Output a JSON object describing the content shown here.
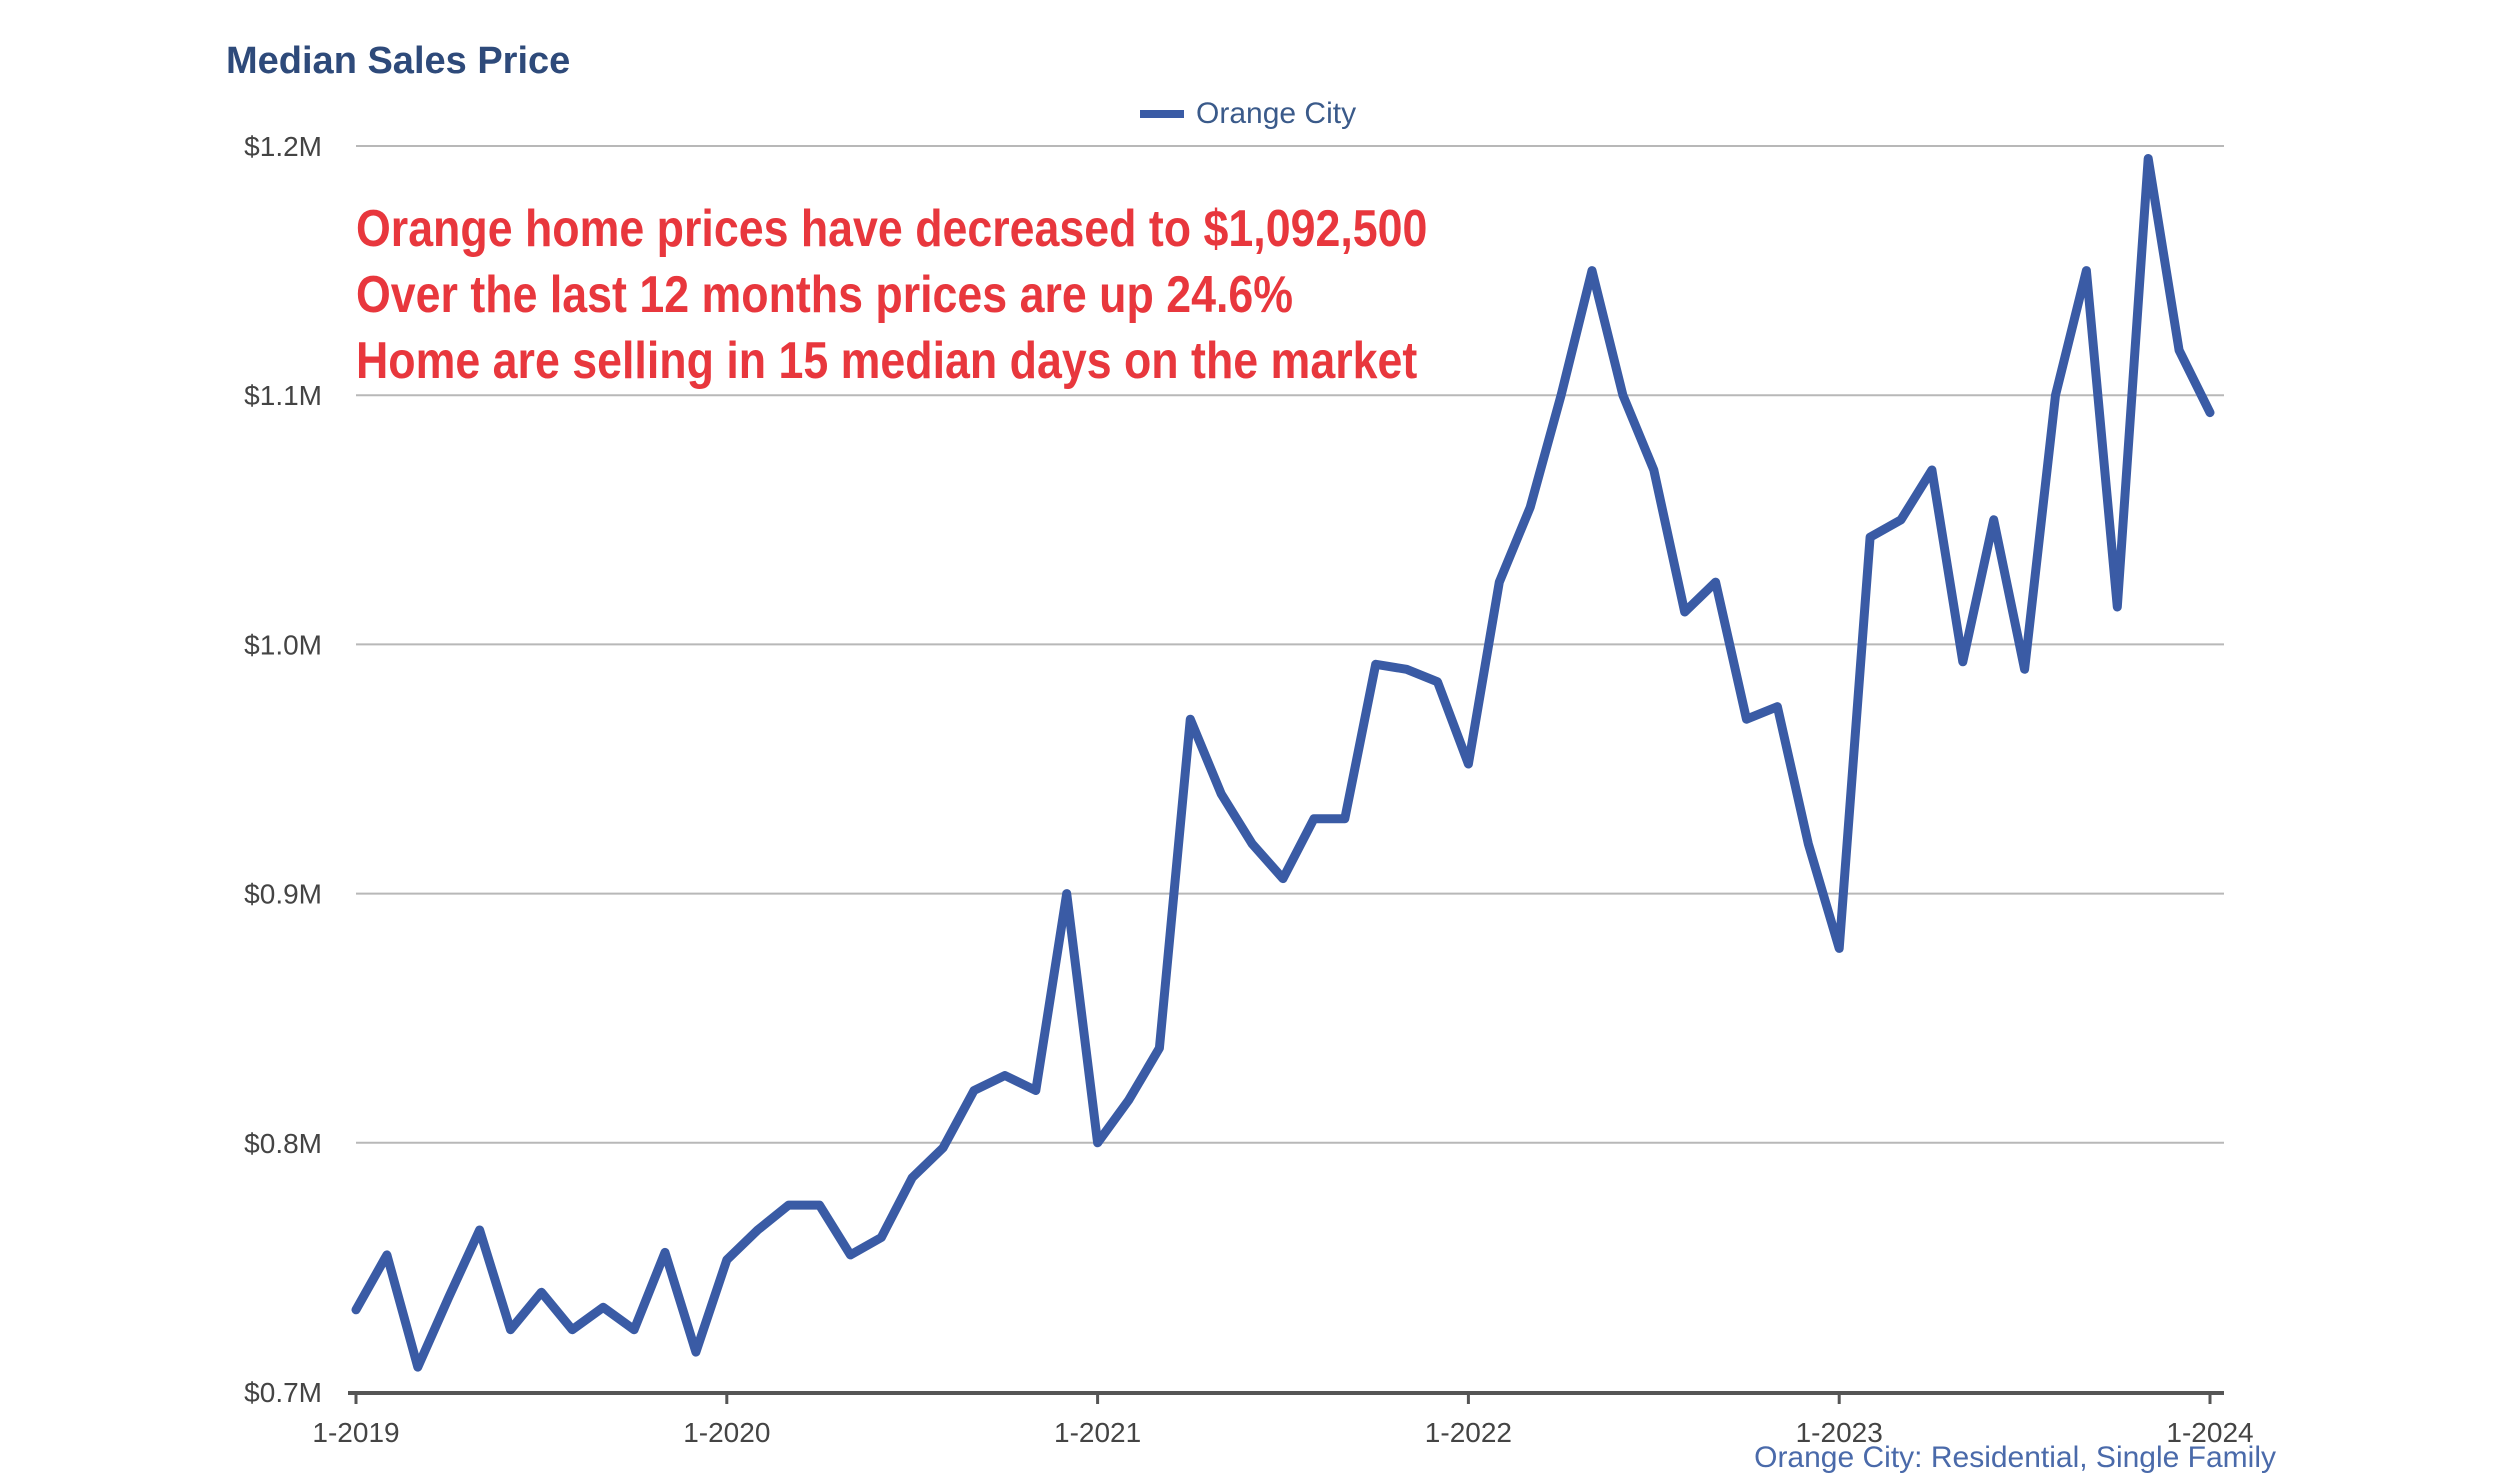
{
  "chart_data": {
    "type": "line",
    "title": "Median Sales Price",
    "legend": [
      "Orange City"
    ],
    "legend_position": "top-center",
    "grid": true,
    "ylim": [
      0.7,
      1.2
    ],
    "y_ticks": [
      {
        "value": 0.7,
        "label": "$0.7M"
      },
      {
        "value": 0.8,
        "label": "$0.8M"
      },
      {
        "value": 0.9,
        "label": "$0.9M"
      },
      {
        "value": 1.0,
        "label": "$1.0M"
      },
      {
        "value": 1.1,
        "label": "$1.1M"
      },
      {
        "value": 1.2,
        "label": "$1.2M"
      }
    ],
    "x_ticks": [
      "1-2019",
      "1-2020",
      "1-2021",
      "1-2022",
      "1-2023",
      "1-2024"
    ],
    "x": [
      "1-2019",
      "2-2019",
      "3-2019",
      "4-2019",
      "5-2019",
      "6-2019",
      "7-2019",
      "8-2019",
      "9-2019",
      "10-2019",
      "11-2019",
      "12-2019",
      "1-2020",
      "2-2020",
      "3-2020",
      "4-2020",
      "5-2020",
      "6-2020",
      "7-2020",
      "8-2020",
      "9-2020",
      "10-2020",
      "11-2020",
      "12-2020",
      "1-2021",
      "2-2021",
      "3-2021",
      "4-2021",
      "5-2021",
      "6-2021",
      "7-2021",
      "8-2021",
      "9-2021",
      "10-2021",
      "11-2021",
      "12-2021",
      "1-2022",
      "2-2022",
      "3-2022",
      "4-2022",
      "5-2022",
      "6-2022",
      "7-2022",
      "8-2022",
      "9-2022",
      "10-2022",
      "11-2022",
      "12-2022",
      "1-2023",
      "2-2023",
      "3-2023",
      "4-2023",
      "5-2023",
      "6-2023",
      "7-2023",
      "8-2023",
      "9-2023",
      "10-2023",
      "11-2023",
      "12-2023",
      "1-2024"
    ],
    "series": [
      {
        "name": "Orange City",
        "color": "#3a5ba5",
        "values": [
          0.733,
          0.755,
          0.71,
          0.738,
          0.765,
          0.725,
          0.74,
          0.725,
          0.734,
          0.725,
          0.756,
          0.716,
          0.753,
          0.765,
          0.775,
          0.775,
          0.755,
          0.762,
          0.786,
          0.798,
          0.821,
          0.827,
          0.821,
          0.9,
          0.8,
          0.817,
          0.838,
          0.97,
          0.94,
          0.92,
          0.906,
          0.93,
          0.93,
          0.992,
          0.99,
          0.985,
          0.952,
          1.025,
          1.055,
          1.1,
          1.15,
          1.1,
          1.07,
          1.013,
          1.025,
          0.97,
          0.975,
          0.92,
          0.878,
          1.043,
          1.05,
          1.07,
          0.993,
          1.05,
          0.99,
          1.1,
          1.15,
          1.015,
          1.195,
          1.118,
          1.093
        ]
      }
    ],
    "annotations": [
      "Orange home prices have decreased to $1,092,500",
      "Over the last 12 months prices are up 24.6%",
      "Home are selling in 15 median days on the market"
    ],
    "source_note": "Orange City: Residential, Single Family"
  }
}
